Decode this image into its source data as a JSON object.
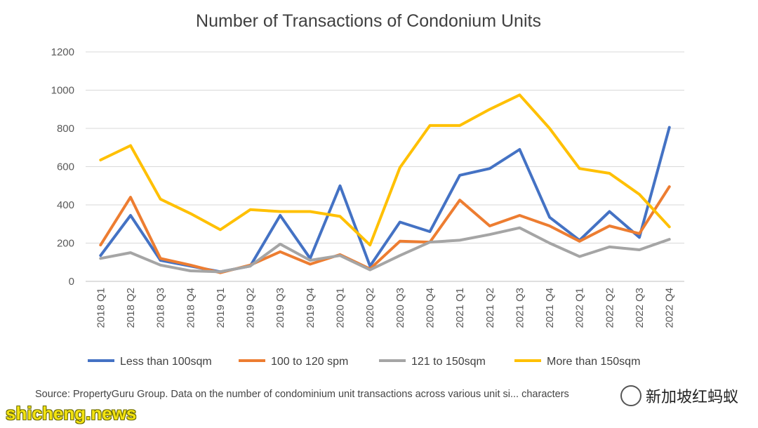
{
  "chart_data": {
    "type": "line",
    "title": "Number of Transactions of Condonium Units",
    "xlabel": "",
    "ylabel": "",
    "ylim": [
      0,
      1200
    ],
    "yticks": [
      0,
      200,
      400,
      600,
      800,
      1000,
      1200
    ],
    "grid": true,
    "legend_position": "bottom",
    "categories": [
      "2018 Q1",
      "2018 Q2",
      "2018 Q3",
      "2018 Q4",
      "2019 Q1",
      "2019 Q2",
      "2019 Q3",
      "2019 Q4",
      "2020 Q1",
      "2020 Q2",
      "2020 Q3",
      "2020 Q4",
      "2021 Q1",
      "2021 Q2",
      "2021 Q3",
      "2021 Q4",
      "2022 Q1",
      "2022 Q2",
      "2022 Q3",
      "2022 Q4"
    ],
    "series": [
      {
        "name": "Less than 100sqm",
        "color": "#4472c4",
        "values": [
          135,
          345,
          110,
          80,
          50,
          80,
          345,
          120,
          500,
          80,
          310,
          260,
          555,
          590,
          690,
          335,
          215,
          365,
          230,
          805
        ]
      },
      {
        "name": "100 to 120 spm",
        "color": "#ed7d31",
        "values": [
          190,
          440,
          120,
          85,
          45,
          85,
          155,
          90,
          140,
          65,
          210,
          205,
          425,
          290,
          345,
          290,
          210,
          290,
          250,
          495
        ]
      },
      {
        "name": "121 to 150sqm",
        "color": "#a5a5a5",
        "values": [
          120,
          150,
          85,
          55,
          50,
          80,
          195,
          110,
          135,
          60,
          135,
          205,
          215,
          245,
          280,
          200,
          130,
          180,
          165,
          220
        ]
      },
      {
        "name": "More than 150sqm",
        "color": "#ffc000",
        "values": [
          635,
          710,
          430,
          355,
          270,
          375,
          365,
          365,
          340,
          190,
          595,
          815,
          815,
          900,
          975,
          800,
          590,
          565,
          455,
          285
        ]
      }
    ]
  },
  "footer": {
    "source_text": "Source: PropertyGuru Group. Data on the number of condominium unit transactions across various unit si... characters",
    "watermark_text": "新加坡红蚂蚁",
    "watermark_icon": "wechat-icon",
    "site_text": "shicheng.news"
  }
}
